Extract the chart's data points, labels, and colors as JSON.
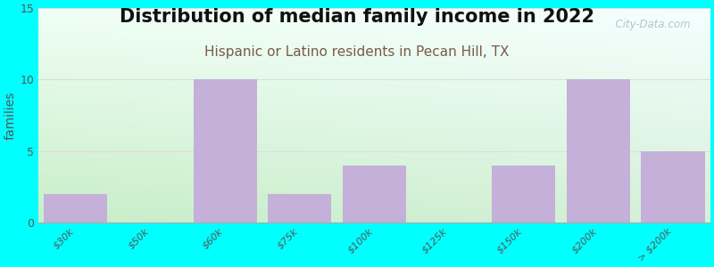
{
  "title": "Distribution of median family income in 2022",
  "subtitle": "Hispanic or Latino residents in Pecan Hill, TX",
  "ylabel": "families",
  "background_color": "#00FFFF",
  "bar_color": "#C4B0D8",
  "categories": [
    "$30k",
    "$50k",
    "$60k",
    "$75k",
    "$100k",
    "$125k",
    "$150k",
    "$200k",
    "> $200k"
  ],
  "values": [
    2,
    0,
    10,
    2,
    4,
    0,
    4,
    10,
    5
  ],
  "ylim": [
    0,
    15
  ],
  "yticks": [
    0,
    5,
    10,
    15
  ],
  "title_fontsize": 15,
  "subtitle_fontsize": 11,
  "ylabel_fontsize": 10,
  "subtitle_color": "#7A5A4A",
  "watermark": "  City-Data.com",
  "grid_color": "#DDDDDD",
  "chart_bg_topleft": "#D8F0E8",
  "chart_bg_topright": "#E8F5F8",
  "chart_bg_bottomleft": "#C8EAC8",
  "chart_bg_bottomright": "#D8F0E0"
}
